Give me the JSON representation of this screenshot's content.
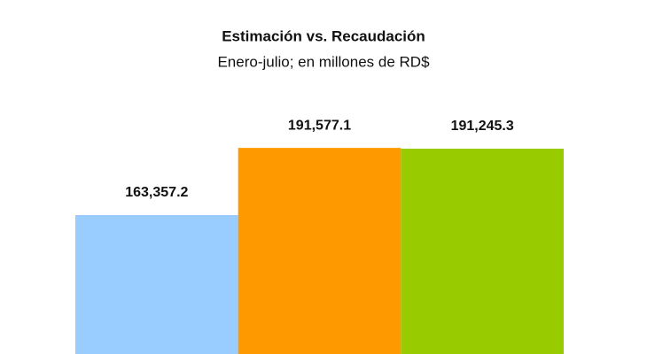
{
  "chart_data": {
    "type": "bar",
    "title": "Estimación vs. Recaudación",
    "subtitle": "Enero-julio; en millones de RD$",
    "categories": [
      null,
      null,
      null
    ],
    "values": [
      163357.2,
      191577.1,
      191245.3
    ],
    "value_labels": [
      "163,357.2",
      "191,577.1",
      "191,245.3"
    ],
    "colors": [
      "#99ccff",
      "#ff9900",
      "#99cc00"
    ],
    "ylim": [
      105000,
      205000
    ]
  }
}
